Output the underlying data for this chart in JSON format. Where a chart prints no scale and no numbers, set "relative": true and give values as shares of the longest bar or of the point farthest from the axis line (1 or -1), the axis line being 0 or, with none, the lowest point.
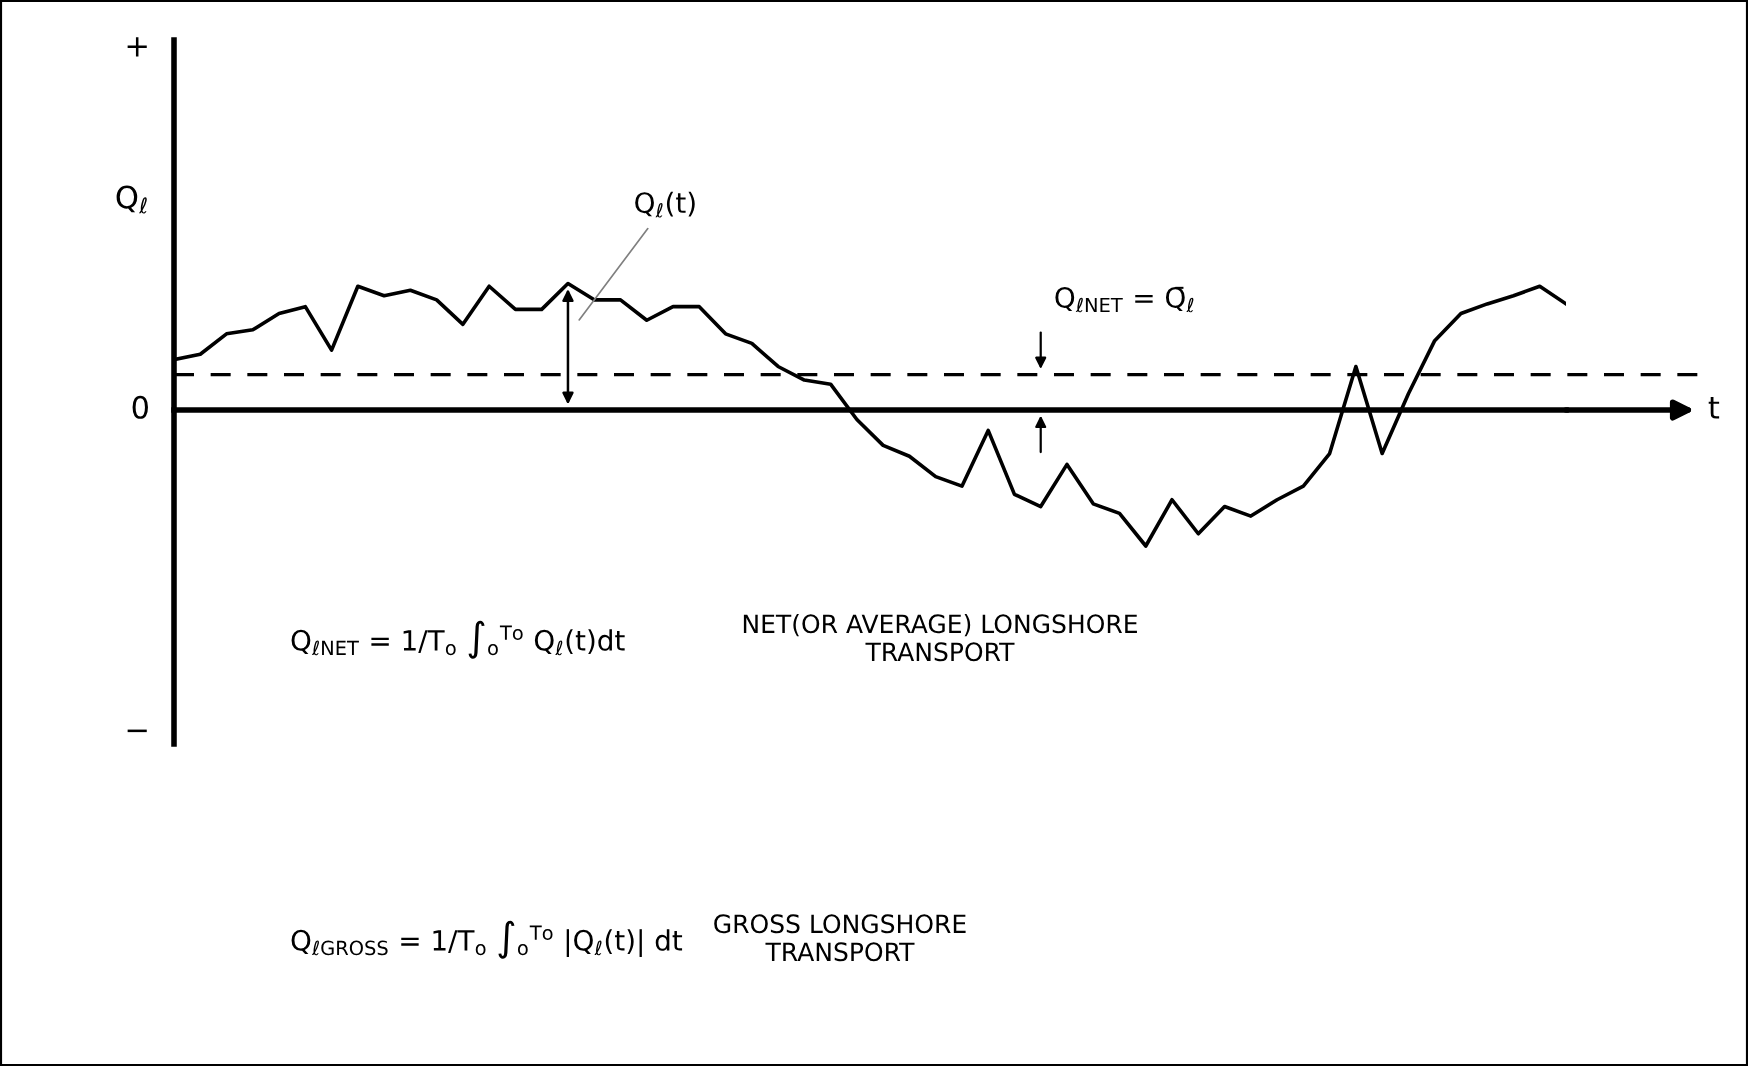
{
  "chart_data": {
    "type": "line",
    "relative": true,
    "ylabel": "Q$_{ℓ}$",
    "xlabel": "t",
    "categories": [
      null,
      null,
      null,
      null,
      null,
      null,
      null,
      null,
      null,
      null,
      null,
      null,
      null,
      null,
      null,
      null,
      null,
      null,
      null,
      null,
      null,
      null,
      null,
      null,
      null,
      null,
      null,
      null,
      null,
      null,
      null,
      null,
      null,
      null,
      null,
      null,
      null,
      null,
      null,
      null,
      null,
      null,
      null,
      null,
      null,
      null,
      null,
      null,
      null,
      null,
      null,
      null,
      null,
      null
    ],
    "series": [
      {
        "color": "#000000",
        "values": [
          0.37,
          0.41,
          0.56,
          0.59,
          0.71,
          0.76,
          0.44,
          0.91,
          0.84,
          0.88,
          0.81,
          0.63,
          0.91,
          0.74,
          0.74,
          0.93,
          0.81,
          0.81,
          0.66,
          0.76,
          0.76,
          0.56,
          0.49,
          0.32,
          0.22,
          0.19,
          -0.07,
          -0.26,
          -0.34,
          -0.49,
          -0.56,
          -0.15,
          -0.62,
          -0.71,
          -0.4,
          -0.69,
          -0.76,
          -1,
          -0.66,
          -0.91,
          -0.71,
          -0.78,
          -0.66,
          -0.56,
          -0.32,
          0.32,
          -0.32,
          0.12,
          0.51,
          0.71,
          0.78,
          0.84,
          0.91,
          0.78
        ]
      }
    ],
    "ref_lines": [
      {
        "axis": "y",
        "value": 0.26,
        "label": "Q$_{ℓNET}$ = Q̄$_{ℓ}$",
        "line_style": "dashed",
        "color": "#000000"
      }
    ],
    "marker": "none",
    "line_style": "solid",
    "annotations": [
      "+",
      "0",
      "−",
      "Q$_{ℓ}$(t)",
      "Q$_{ℓNET}$ = 1/T$_{o}$ ∫$_{o}$$^{To}$ Q$_{ℓ}$(t)dt",
      "NET(OR AVERAGE) LONGSHORE\nTRANSPORT",
      "Q$_{ℓGROSS}$ = 1/T$_{o}$ ∫$_{o}$$^{To}$ |Q$_{ℓ}$(t)| dt",
      "GROSS LONGSHORE\nTRANSPORT"
    ]
  }
}
